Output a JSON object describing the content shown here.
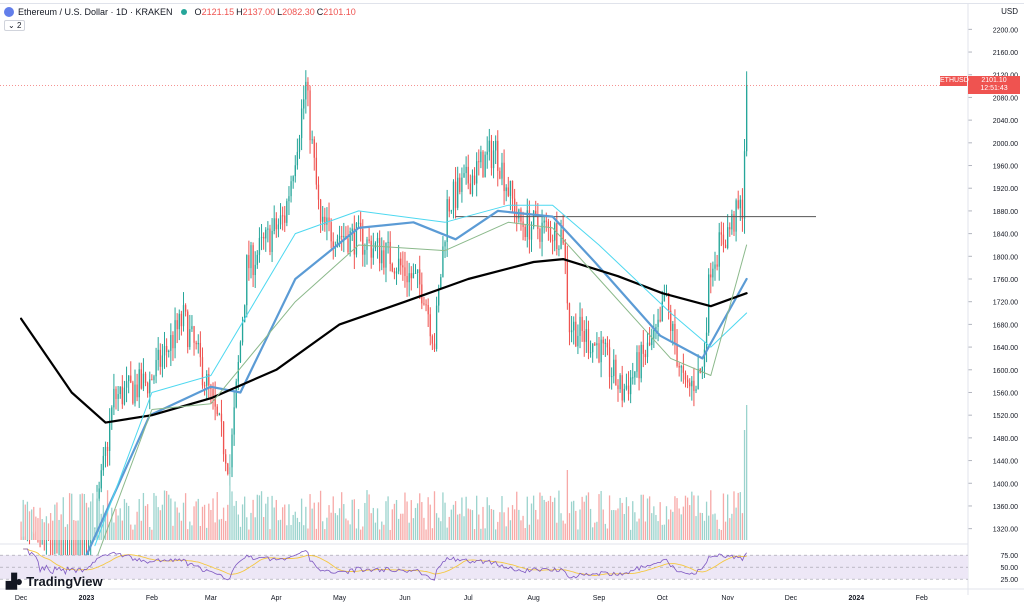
{
  "header": {
    "title": "Ethereum / U.S. Dollar · 1D · KRAKEN",
    "o_label": "O",
    "o_value": "2121.15",
    "h_label": "H",
    "h_value": "2137.00",
    "l_label": "L",
    "l_value": "2082.30",
    "c_label": "C",
    "c_value": "2101.10",
    "collapse_badge": "2",
    "currency": "USD"
  },
  "price_label": {
    "symbol": "ETHUSD",
    "price": "2101.10",
    "countdown": "12:51:43"
  },
  "brand": {
    "name": "TradingView",
    "icon": "tradingview-logo-icon"
  },
  "colors": {
    "up": "#26a69a",
    "down": "#ef5350",
    "volume_up": "#9bd3cd",
    "volume_down": "#f7a9a7",
    "ma_fast": "#5b9bd5",
    "ma_slow": "#000000",
    "band_cyan": "#4dd8f0",
    "band_green": "#8bb98b",
    "rsi_line": "#7e57c2",
    "rsi_ma": "#f5c842",
    "rsi_band": "#ede7f6"
  },
  "chart_data": {
    "type": "candlestick",
    "title": "Ethereum / U.S. Dollar · 1D · KRAKEN",
    "x_ticks": [
      "Dec",
      "2023",
      "Feb",
      "Mar",
      "Apr",
      "May",
      "Jun",
      "Jul",
      "Aug",
      "Sep",
      "Oct",
      "Nov",
      "Dec",
      "2024",
      "Feb"
    ],
    "y_ticks": [
      1320,
      1360,
      1400,
      1440,
      1480,
      1520,
      1560,
      1600,
      1640,
      1680,
      1720,
      1760,
      1800,
      1840,
      1880,
      1920,
      1960,
      2000,
      2040,
      2080,
      2120,
      2160,
      2200
    ],
    "y_tick_labels": [
      "1320.00",
      "1360.00",
      "1400.00",
      "1440.00",
      "1480.00",
      "1520.00",
      "1560.00",
      "1600.00",
      "1640.00",
      "1680.00",
      "1720.00",
      "1760.00",
      "1800.00",
      "1840.00",
      "1880.00",
      "1920.00",
      "1960.00",
      "2000.00",
      "2040.00",
      "2080.00",
      "2120.00",
      "2160.00",
      "2200.00"
    ],
    "ylim": [
      1300,
      2220
    ],
    "last_price": 2101.1,
    "horizontal_line": 1870,
    "close_anchors": [
      [
        "2022-12-01",
        1280
      ],
      [
        "2022-12-31",
        1200
      ],
      [
        "2023-01-14",
        1550
      ],
      [
        "2023-01-31",
        1580
      ],
      [
        "2023-02-16",
        1690
      ],
      [
        "2023-02-25",
        1600
      ],
      [
        "2023-03-10",
        1430
      ],
      [
        "2023-03-18",
        1780
      ],
      [
        "2023-04-05",
        1870
      ],
      [
        "2023-04-15",
        2100
      ],
      [
        "2023-04-22",
        1850
      ],
      [
        "2023-05-10",
        1830
      ],
      [
        "2023-05-25",
        1800
      ],
      [
        "2023-06-10",
        1740
      ],
      [
        "2023-06-15",
        1650
      ],
      [
        "2023-06-21",
        1890
      ],
      [
        "2023-06-30",
        1930
      ],
      [
        "2023-07-14",
        1990
      ],
      [
        "2023-07-25",
        1860
      ],
      [
        "2023-08-15",
        1840
      ],
      [
        "2023-08-18",
        1680
      ],
      [
        "2023-09-01",
        1640
      ],
      [
        "2023-09-12",
        1560
      ],
      [
        "2023-09-30",
        1670
      ],
      [
        "2023-10-02",
        1730
      ],
      [
        "2023-10-12",
        1560
      ],
      [
        "2023-10-20",
        1600
      ],
      [
        "2023-10-24",
        1790
      ],
      [
        "2023-11-08",
        1890
      ],
      [
        "2023-11-10",
        2101
      ]
    ],
    "moving_averages": [
      {
        "name": "MA fast",
        "color": "#5b9bd5",
        "points": [
          [
            "2022-12-28",
            1240
          ],
          [
            "2023-01-31",
            1520
          ],
          [
            "2023-03-01",
            1570
          ],
          [
            "2023-03-15",
            1560
          ],
          [
            "2023-04-10",
            1760
          ],
          [
            "2023-05-10",
            1850
          ],
          [
            "2023-06-05",
            1860
          ],
          [
            "2023-06-25",
            1830
          ],
          [
            "2023-07-15",
            1880
          ],
          [
            "2023-08-10",
            1870
          ],
          [
            "2023-08-30",
            1790
          ],
          [
            "2023-09-30",
            1660
          ],
          [
            "2023-10-20",
            1620
          ],
          [
            "2023-11-10",
            1760
          ]
        ]
      },
      {
        "name": "MA slow",
        "color": "#000000",
        "points": [
          [
            "2022-12-01",
            1690
          ],
          [
            "2022-12-25",
            1560
          ],
          [
            "2023-01-10",
            1507
          ],
          [
            "2023-02-01",
            1520
          ],
          [
            "2023-03-01",
            1550
          ],
          [
            "2023-04-01",
            1600
          ],
          [
            "2023-05-01",
            1680
          ],
          [
            "2023-06-01",
            1720
          ],
          [
            "2023-07-01",
            1760
          ],
          [
            "2023-08-01",
            1790
          ],
          [
            "2023-08-15",
            1795
          ],
          [
            "2023-09-10",
            1765
          ],
          [
            "2023-10-01",
            1735
          ],
          [
            "2023-10-24",
            1712
          ],
          [
            "2023-11-10",
            1735
          ]
        ]
      },
      {
        "name": "Band upper",
        "color": "#4dd8f0",
        "points": [
          [
            "2023-01-05",
            1290
          ],
          [
            "2023-02-01",
            1560
          ],
          [
            "2023-03-01",
            1590
          ],
          [
            "2023-04-10",
            1840
          ],
          [
            "2023-05-10",
            1880
          ],
          [
            "2023-06-20",
            1860
          ],
          [
            "2023-07-20",
            1890
          ],
          [
            "2023-08-10",
            1890
          ],
          [
            "2023-09-01",
            1820
          ],
          [
            "2023-10-05",
            1700
          ],
          [
            "2023-10-24",
            1640
          ],
          [
            "2023-11-10",
            1700
          ]
        ]
      },
      {
        "name": "Band lower",
        "color": "#8bb98b",
        "points": [
          [
            "2023-01-05",
            1260
          ],
          [
            "2023-02-01",
            1530
          ],
          [
            "2023-03-01",
            1540
          ],
          [
            "2023-04-10",
            1720
          ],
          [
            "2023-05-10",
            1820
          ],
          [
            "2023-06-20",
            1810
          ],
          [
            "2023-07-20",
            1860
          ],
          [
            "2023-08-10",
            1850
          ],
          [
            "2023-09-01",
            1760
          ],
          [
            "2023-10-05",
            1620
          ],
          [
            "2023-10-24",
            1590
          ],
          [
            "2023-11-10",
            1820
          ]
        ]
      }
    ],
    "rsi": {
      "levels": [
        75,
        50,
        25
      ],
      "level_labels": [
        "75.00",
        "50.00",
        "25.00"
      ],
      "ylim": [
        15,
        90
      ]
    }
  }
}
